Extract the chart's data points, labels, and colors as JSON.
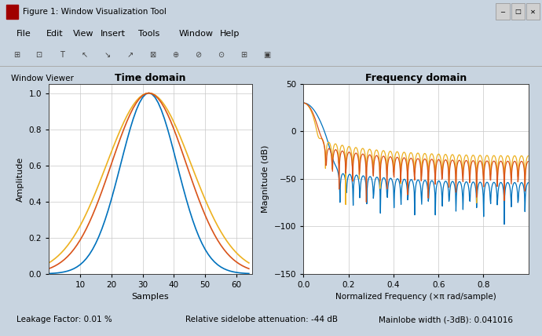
{
  "title_time": "Time domain",
  "title_freq": "Frequency domain",
  "xlabel_time": "Samples",
  "ylabel_time": "Amplitude",
  "xlabel_freq": "Normalized Frequency (×π rad/sample)",
  "ylabel_freq": "Magnitude (dB)",
  "time_xlim": [
    0,
    65
  ],
  "time_ylim": [
    0,
    1.05
  ],
  "freq_xlim": [
    0,
    1.0
  ],
  "freq_ylim": [
    -150,
    50
  ],
  "color_blue": "#0072BD",
  "color_orange": "#EDB120",
  "color_red": "#D95319",
  "N": 65,
  "window_title": "Figure 1: Window Visualization Tool",
  "panel_label": "Window Viewer",
  "titlebar_color": "#C8D0DC",
  "menubar_color": "#F0F0F0",
  "toolbar_color": "#EAEAEA",
  "panel_bg": "#C8D4E0",
  "status_bg": "#D0D8E4",
  "axes_bg": "white",
  "grid_color": "#C8C8C8",
  "status_leakage": "Leakage Factor: 0.01 %",
  "status_sidelobe": "Relative sidelobe attenuation: -44 dB",
  "status_mainlobe": "Mainlobe width (-3dB): 0.041016",
  "peak_db": 30.0,
  "sigma_blue": 9.0,
  "sigma_orange": 13.5,
  "sigma_red": 12.0
}
